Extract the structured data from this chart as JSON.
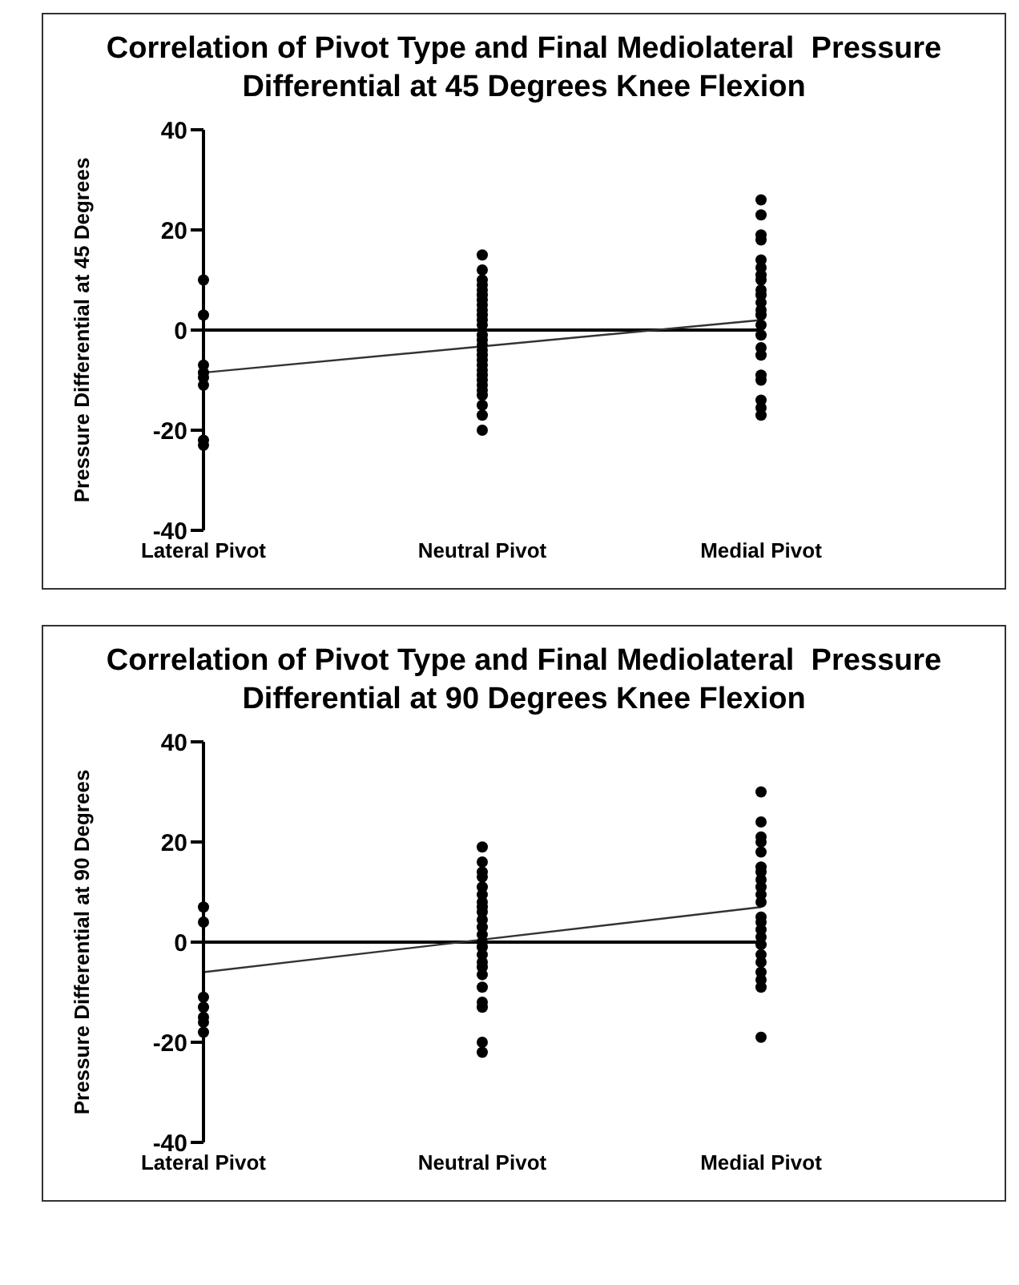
{
  "chart_data": [
    {
      "type": "scatter",
      "title": "Correlation of Pivot Type and Final Mediolateral  Pressure Differential at 45 Degrees Knee Flexion",
      "ylabel": "Pressure Differential at 45 Degrees",
      "categories": [
        "Lateral Pivot",
        "Neutral Pivot",
        "Medial Pivot"
      ],
      "ylim": [
        -40,
        40
      ],
      "yticks": [
        -40,
        -20,
        0,
        20,
        40
      ],
      "grid": false,
      "legend": false,
      "marker": "circle",
      "ref_lines": [
        {
          "axis": "y",
          "value": 0,
          "color": "#000000"
        }
      ],
      "series": [
        {
          "type": "scatter",
          "color": "#000000",
          "x": [
            "Lateral Pivot",
            "Lateral Pivot",
            "Lateral Pivot",
            "Lateral Pivot",
            "Lateral Pivot",
            "Lateral Pivot",
            "Lateral Pivot",
            "Lateral Pivot",
            "Neutral Pivot",
            "Neutral Pivot",
            "Neutral Pivot",
            "Neutral Pivot",
            "Neutral Pivot",
            "Neutral Pivot",
            "Neutral Pivot",
            "Neutral Pivot",
            "Neutral Pivot",
            "Neutral Pivot",
            "Neutral Pivot",
            "Neutral Pivot",
            "Neutral Pivot",
            "Neutral Pivot",
            "Neutral Pivot",
            "Neutral Pivot",
            "Neutral Pivot",
            "Neutral Pivot",
            "Neutral Pivot",
            "Neutral Pivot",
            "Neutral Pivot",
            "Neutral Pivot",
            "Neutral Pivot",
            "Neutral Pivot",
            "Neutral Pivot",
            "Neutral Pivot",
            "Neutral Pivot",
            "Neutral Pivot",
            "Medial Pivot",
            "Medial Pivot",
            "Medial Pivot",
            "Medial Pivot",
            "Medial Pivot",
            "Medial Pivot",
            "Medial Pivot",
            "Medial Pivot",
            "Medial Pivot",
            "Medial Pivot",
            "Medial Pivot",
            "Medial Pivot",
            "Medial Pivot",
            "Medial Pivot",
            "Medial Pivot",
            "Medial Pivot",
            "Medial Pivot",
            "Medial Pivot",
            "Medial Pivot",
            "Medial Pivot",
            "Medial Pivot",
            "Medial Pivot"
          ],
          "values": [
            10,
            3,
            -7,
            -8.5,
            -9.5,
            -11,
            -22,
            -23,
            15,
            12,
            10,
            9,
            8,
            7,
            6,
            5,
            4,
            3,
            2,
            1,
            -1,
            -2,
            -3,
            -4,
            -5,
            -6,
            -7,
            -8,
            -9,
            -10,
            -11,
            -12,
            -13,
            -15,
            -17,
            -20,
            26,
            23,
            19,
            18,
            14,
            12.5,
            11,
            10,
            8,
            7,
            5.5,
            4,
            3,
            1,
            -1,
            -3.5,
            -5,
            -9,
            -10,
            -14,
            -15.5,
            -17
          ]
        },
        {
          "type": "line",
          "color": "#333333",
          "marker": "none",
          "x": [
            "Lateral Pivot",
            "Medial Pivot"
          ],
          "values": [
            -8.5,
            2
          ]
        }
      ]
    },
    {
      "type": "scatter",
      "title": "Correlation of Pivot Type and Final Mediolateral  Pressure Differential at 90 Degrees Knee Flexion",
      "ylabel": "Pressure Differential at 90 Degrees",
      "categories": [
        "Lateral Pivot",
        "Neutral Pivot",
        "Medial Pivot"
      ],
      "ylim": [
        -40,
        40
      ],
      "yticks": [
        -40,
        -20,
        0,
        20,
        40
      ],
      "grid": false,
      "legend": false,
      "marker": "circle",
      "ref_lines": [
        {
          "axis": "y",
          "value": 0,
          "color": "#000000"
        }
      ],
      "series": [
        {
          "type": "scatter",
          "color": "#000000",
          "x": [
            "Lateral Pivot",
            "Lateral Pivot",
            "Lateral Pivot",
            "Lateral Pivot",
            "Lateral Pivot",
            "Lateral Pivot",
            "Lateral Pivot",
            "Neutral Pivot",
            "Neutral Pivot",
            "Neutral Pivot",
            "Neutral Pivot",
            "Neutral Pivot",
            "Neutral Pivot",
            "Neutral Pivot",
            "Neutral Pivot",
            "Neutral Pivot",
            "Neutral Pivot",
            "Neutral Pivot",
            "Neutral Pivot",
            "Neutral Pivot",
            "Neutral Pivot",
            "Neutral Pivot",
            "Neutral Pivot",
            "Neutral Pivot",
            "Neutral Pivot",
            "Neutral Pivot",
            "Neutral Pivot",
            "Neutral Pivot",
            "Neutral Pivot",
            "Neutral Pivot",
            "Medial Pivot",
            "Medial Pivot",
            "Medial Pivot",
            "Medial Pivot",
            "Medial Pivot",
            "Medial Pivot",
            "Medial Pivot",
            "Medial Pivot",
            "Medial Pivot",
            "Medial Pivot",
            "Medial Pivot",
            "Medial Pivot",
            "Medial Pivot",
            "Medial Pivot",
            "Medial Pivot",
            "Medial Pivot",
            "Medial Pivot",
            "Medial Pivot",
            "Medial Pivot",
            "Medial Pivot",
            "Medial Pivot",
            "Medial Pivot"
          ],
          "values": [
            7,
            4,
            -11,
            -13,
            -15,
            -16,
            -18,
            19,
            16,
            14,
            13,
            11,
            9.5,
            8,
            7,
            6,
            4.5,
            3,
            1.5,
            0,
            -1,
            -2.5,
            -4,
            -5,
            -6.5,
            -9,
            -12,
            -13,
            -20,
            -22,
            30,
            24,
            21,
            20,
            18,
            15,
            14,
            12.5,
            11,
            9.5,
            8,
            5,
            4,
            2.5,
            1,
            -0.5,
            -2.5,
            -4,
            -6,
            -7.5,
            -9,
            -19
          ]
        },
        {
          "type": "line",
          "color": "#333333",
          "marker": "none",
          "x": [
            "Lateral Pivot",
            "Medial Pivot"
          ],
          "values": [
            -6,
            7
          ]
        }
      ]
    }
  ]
}
